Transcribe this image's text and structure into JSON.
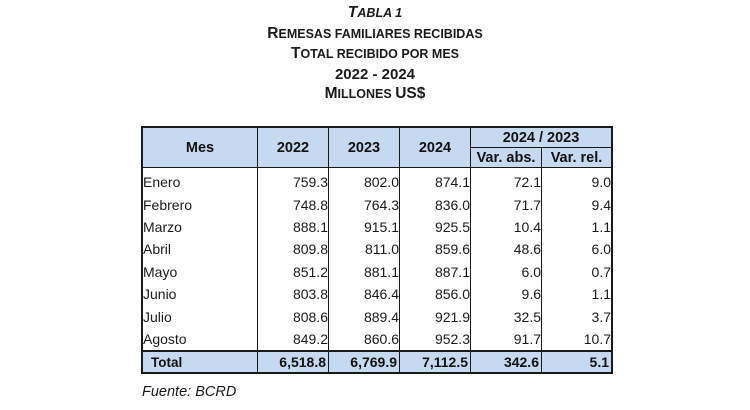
{
  "title": {
    "line1": "TABLA 1",
    "line2": "REMESAS FAMILIARES RECIBIDAS",
    "line3": "TOTAL RECIBIDO POR MES",
    "line4": "2022 - 2024",
    "line5": "MILLONES US$"
  },
  "table": {
    "headers": {
      "mes": "Mes",
      "y2022": "2022",
      "y2023": "2023",
      "y2024": "2024",
      "group": "2024 / 2023",
      "var_abs": "Var. abs.",
      "var_rel": "Var. rel."
    },
    "rows": [
      {
        "mes": "Enero",
        "y2022": "759.3",
        "y2023": "802.0",
        "y2024": "874.1",
        "var_abs": "72.1",
        "var_rel": "9.0"
      },
      {
        "mes": "Febrero",
        "y2022": "748.8",
        "y2023": "764.3",
        "y2024": "836.0",
        "var_abs": "71.7",
        "var_rel": "9.4"
      },
      {
        "mes": "Marzo",
        "y2022": "888.1",
        "y2023": "915.1",
        "y2024": "925.5",
        "var_abs": "10.4",
        "var_rel": "1.1"
      },
      {
        "mes": "Abril",
        "y2022": "809.8",
        "y2023": "811.0",
        "y2024": "859.6",
        "var_abs": "48.6",
        "var_rel": "6.0"
      },
      {
        "mes": "Mayo",
        "y2022": "851.2",
        "y2023": "881.1",
        "y2024": "887.1",
        "var_abs": "6.0",
        "var_rel": "0.7"
      },
      {
        "mes": "Junio",
        "y2022": "803.8",
        "y2023": "846.4",
        "y2024": "856.0",
        "var_abs": "9.6",
        "var_rel": "1.1"
      },
      {
        "mes": "Julio",
        "y2022": "808.6",
        "y2023": "889.4",
        "y2024": "921.9",
        "var_abs": "32.5",
        "var_rel": "3.7"
      },
      {
        "mes": "Agosto",
        "y2022": "849.2",
        "y2023": "860.6",
        "y2024": "952.3",
        "var_abs": "91.7",
        "var_rel": "10.7"
      }
    ],
    "total": {
      "mes": "Total",
      "y2022": "6,518.8",
      "y2023": "6,769.9",
      "y2024": "7,112.5",
      "var_abs": "342.6",
      "var_rel": "5.1"
    }
  },
  "source": "Fuente: BCRD",
  "colors": {
    "header_bg": "#c5d9f1",
    "border": "#1a1a1a"
  }
}
